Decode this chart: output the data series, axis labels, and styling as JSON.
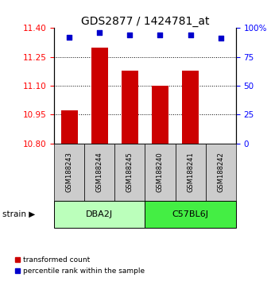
{
  "title": "GDS2877 / 1424781_at",
  "samples": [
    "GSM188243",
    "GSM188244",
    "GSM188245",
    "GSM188240",
    "GSM188241",
    "GSM188242"
  ],
  "group_labels": [
    "DBA2J",
    "C57BL6J"
  ],
  "transformed_counts": [
    10.97,
    11.3,
    11.18,
    11.1,
    11.18,
    10.8
  ],
  "percentile_ranks": [
    92,
    96,
    94,
    94,
    94,
    91
  ],
  "ylim_left": [
    10.8,
    11.4
  ],
  "ylim_right": [
    0,
    100
  ],
  "yticks_left": [
    10.8,
    10.95,
    11.1,
    11.25,
    11.4
  ],
  "yticks_right": [
    0,
    25,
    50,
    75,
    100
  ],
  "ytick_right_labels": [
    "0",
    "25",
    "50",
    "75",
    "100%"
  ],
  "bar_color": "#cc0000",
  "dot_color": "#0000cc",
  "bar_width": 0.55,
  "label_transformed": "transformed count",
  "label_percentile": "percentile rank within the sample",
  "sample_box_color": "#cccccc",
  "group_colors": [
    "#bbffbb",
    "#44ee44"
  ],
  "title_fontsize": 10,
  "tick_fontsize": 7.5,
  "sample_fontsize": 6,
  "group_fontsize": 8,
  "legend_fontsize": 6.5
}
